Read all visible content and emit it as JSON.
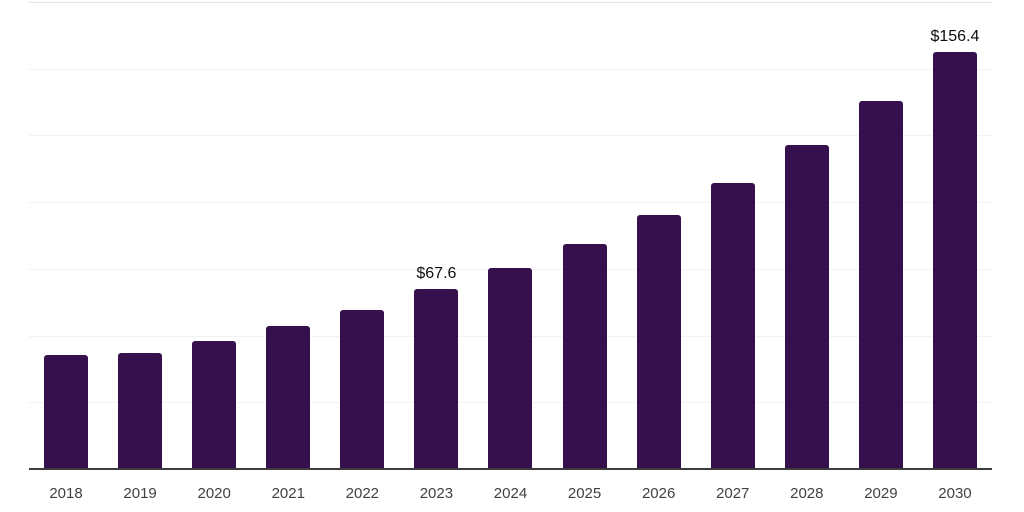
{
  "chart_data": {
    "type": "bar",
    "title": "",
    "xlabel": "",
    "ylabel": "",
    "categories": [
      "2018",
      "2019",
      "2020",
      "2021",
      "2022",
      "2023",
      "2024",
      "2025",
      "2026",
      "2027",
      "2028",
      "2029",
      "2030"
    ],
    "values": [
      42.7,
      43.4,
      47.9,
      53.6,
      59.7,
      67.6,
      75.3,
      84.4,
      95.1,
      107.1,
      121.3,
      137.8,
      156.4
    ],
    "data_labels": [
      "",
      "",
      "",
      "",
      "",
      "$67.6",
      "",
      "",
      "",
      "",
      "",
      "",
      "$156.4"
    ],
    "ylim": [
      0,
      175
    ],
    "y_gridline_step": 25,
    "grid": true,
    "legend_position": "none",
    "colors": {
      "bar": "#36104d",
      "axis_line": "#3d3d3d",
      "gridline": "#f2f2f2",
      "top_gridline": "#e5e5e5",
      "value_label_text": "#0f0f0f",
      "category_label_text": "#414141",
      "background": "#ffffff"
    }
  }
}
